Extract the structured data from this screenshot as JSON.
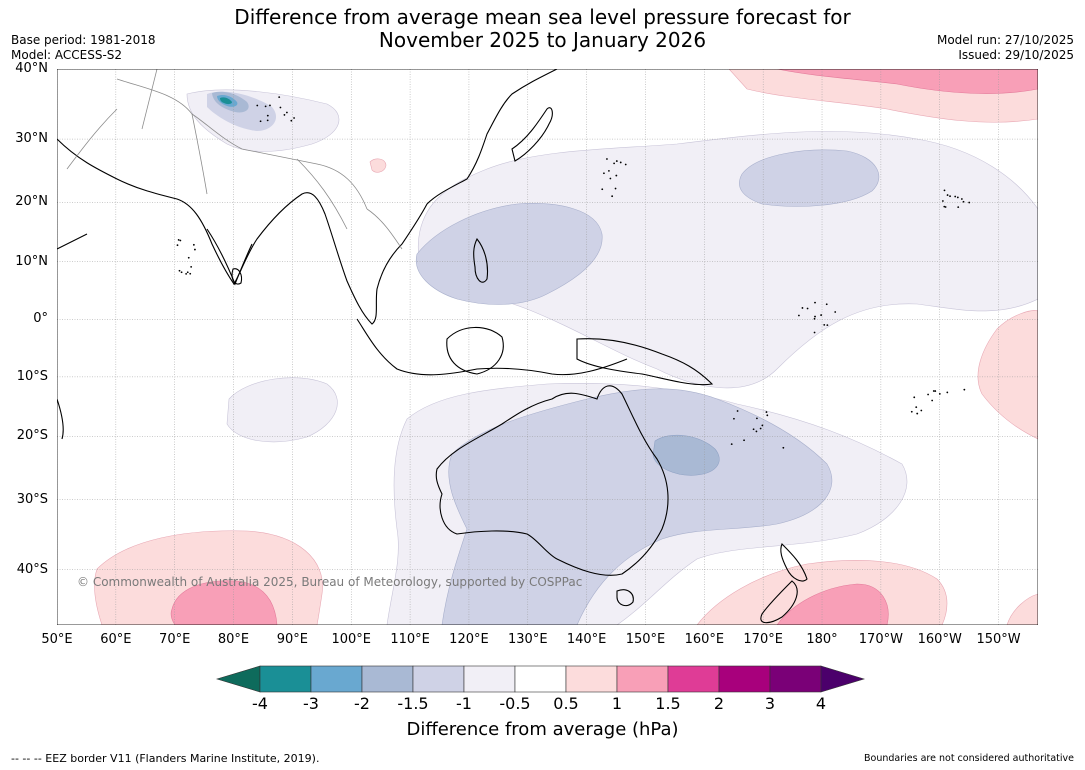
{
  "title_line1": "Difference from average mean sea level pressure forecast for",
  "title_line2": "November 2025 to January 2026",
  "base_period": "Base period: 1981-2018",
  "model": "Model: ACCESS-S2",
  "model_run": "Model run: 27/10/2025",
  "issued": "Issued: 29/10/2025",
  "copyright": "© Commonwealth of Australia 2025, Bureau of Meteorology, supported by COSPPac",
  "latitudes": [
    {
      "label": "40°N",
      "value": 40
    },
    {
      "label": "30°N",
      "value": 30
    },
    {
      "label": "20°N",
      "value": 20
    },
    {
      "label": "10°N",
      "value": 10
    },
    {
      "label": "0°",
      "value": 0
    },
    {
      "label": "10°S",
      "value": -10
    },
    {
      "label": "20°S",
      "value": -20
    },
    {
      "label": "30°S",
      "value": -30
    },
    {
      "label": "40°S",
      "value": -40
    }
  ],
  "longitudes": [
    {
      "label": "50°E",
      "value": 50
    },
    {
      "label": "60°E",
      "value": 60
    },
    {
      "label": "70°E",
      "value": 70
    },
    {
      "label": "80°E",
      "value": 80
    },
    {
      "label": "90°E",
      "value": 90
    },
    {
      "label": "100°E",
      "value": 100
    },
    {
      "label": "110°E",
      "value": 110
    },
    {
      "label": "120°E",
      "value": 120
    },
    {
      "label": "130°E",
      "value": 130
    },
    {
      "label": "140°E",
      "value": 140
    },
    {
      "label": "150°E",
      "value": 150
    },
    {
      "label": "160°E",
      "value": 160
    },
    {
      "label": "170°E",
      "value": 170
    },
    {
      "label": "180°",
      "value": 180
    },
    {
      "label": "170°W",
      "value": 190
    },
    {
      "label": "160°W",
      "value": 200
    },
    {
      "label": "150°W",
      "value": 210
    }
  ],
  "colorbar": {
    "label": "Difference from average (hPa)",
    "ticks": [
      "-4",
      "-3",
      "-2",
      "-1.5",
      "-1",
      "-0.5",
      "0.5",
      "1",
      "1.5",
      "2",
      "3",
      "4"
    ],
    "colors": [
      "#0e6b5c",
      "#1a8f96",
      "#69a8d0",
      "#a9b9d4",
      "#cfd2e6",
      "#f1eff6",
      "#ffffff",
      "#fcdcdc",
      "#f89fb7",
      "#df3c96",
      "#a8007c",
      "#7a0077",
      "#4b006b"
    ]
  },
  "footer_left": "--  --  -- EEZ border V11 (Flanders Marine Institute, 2019).",
  "footer_right": "Boundaries are not considered authoritative"
}
